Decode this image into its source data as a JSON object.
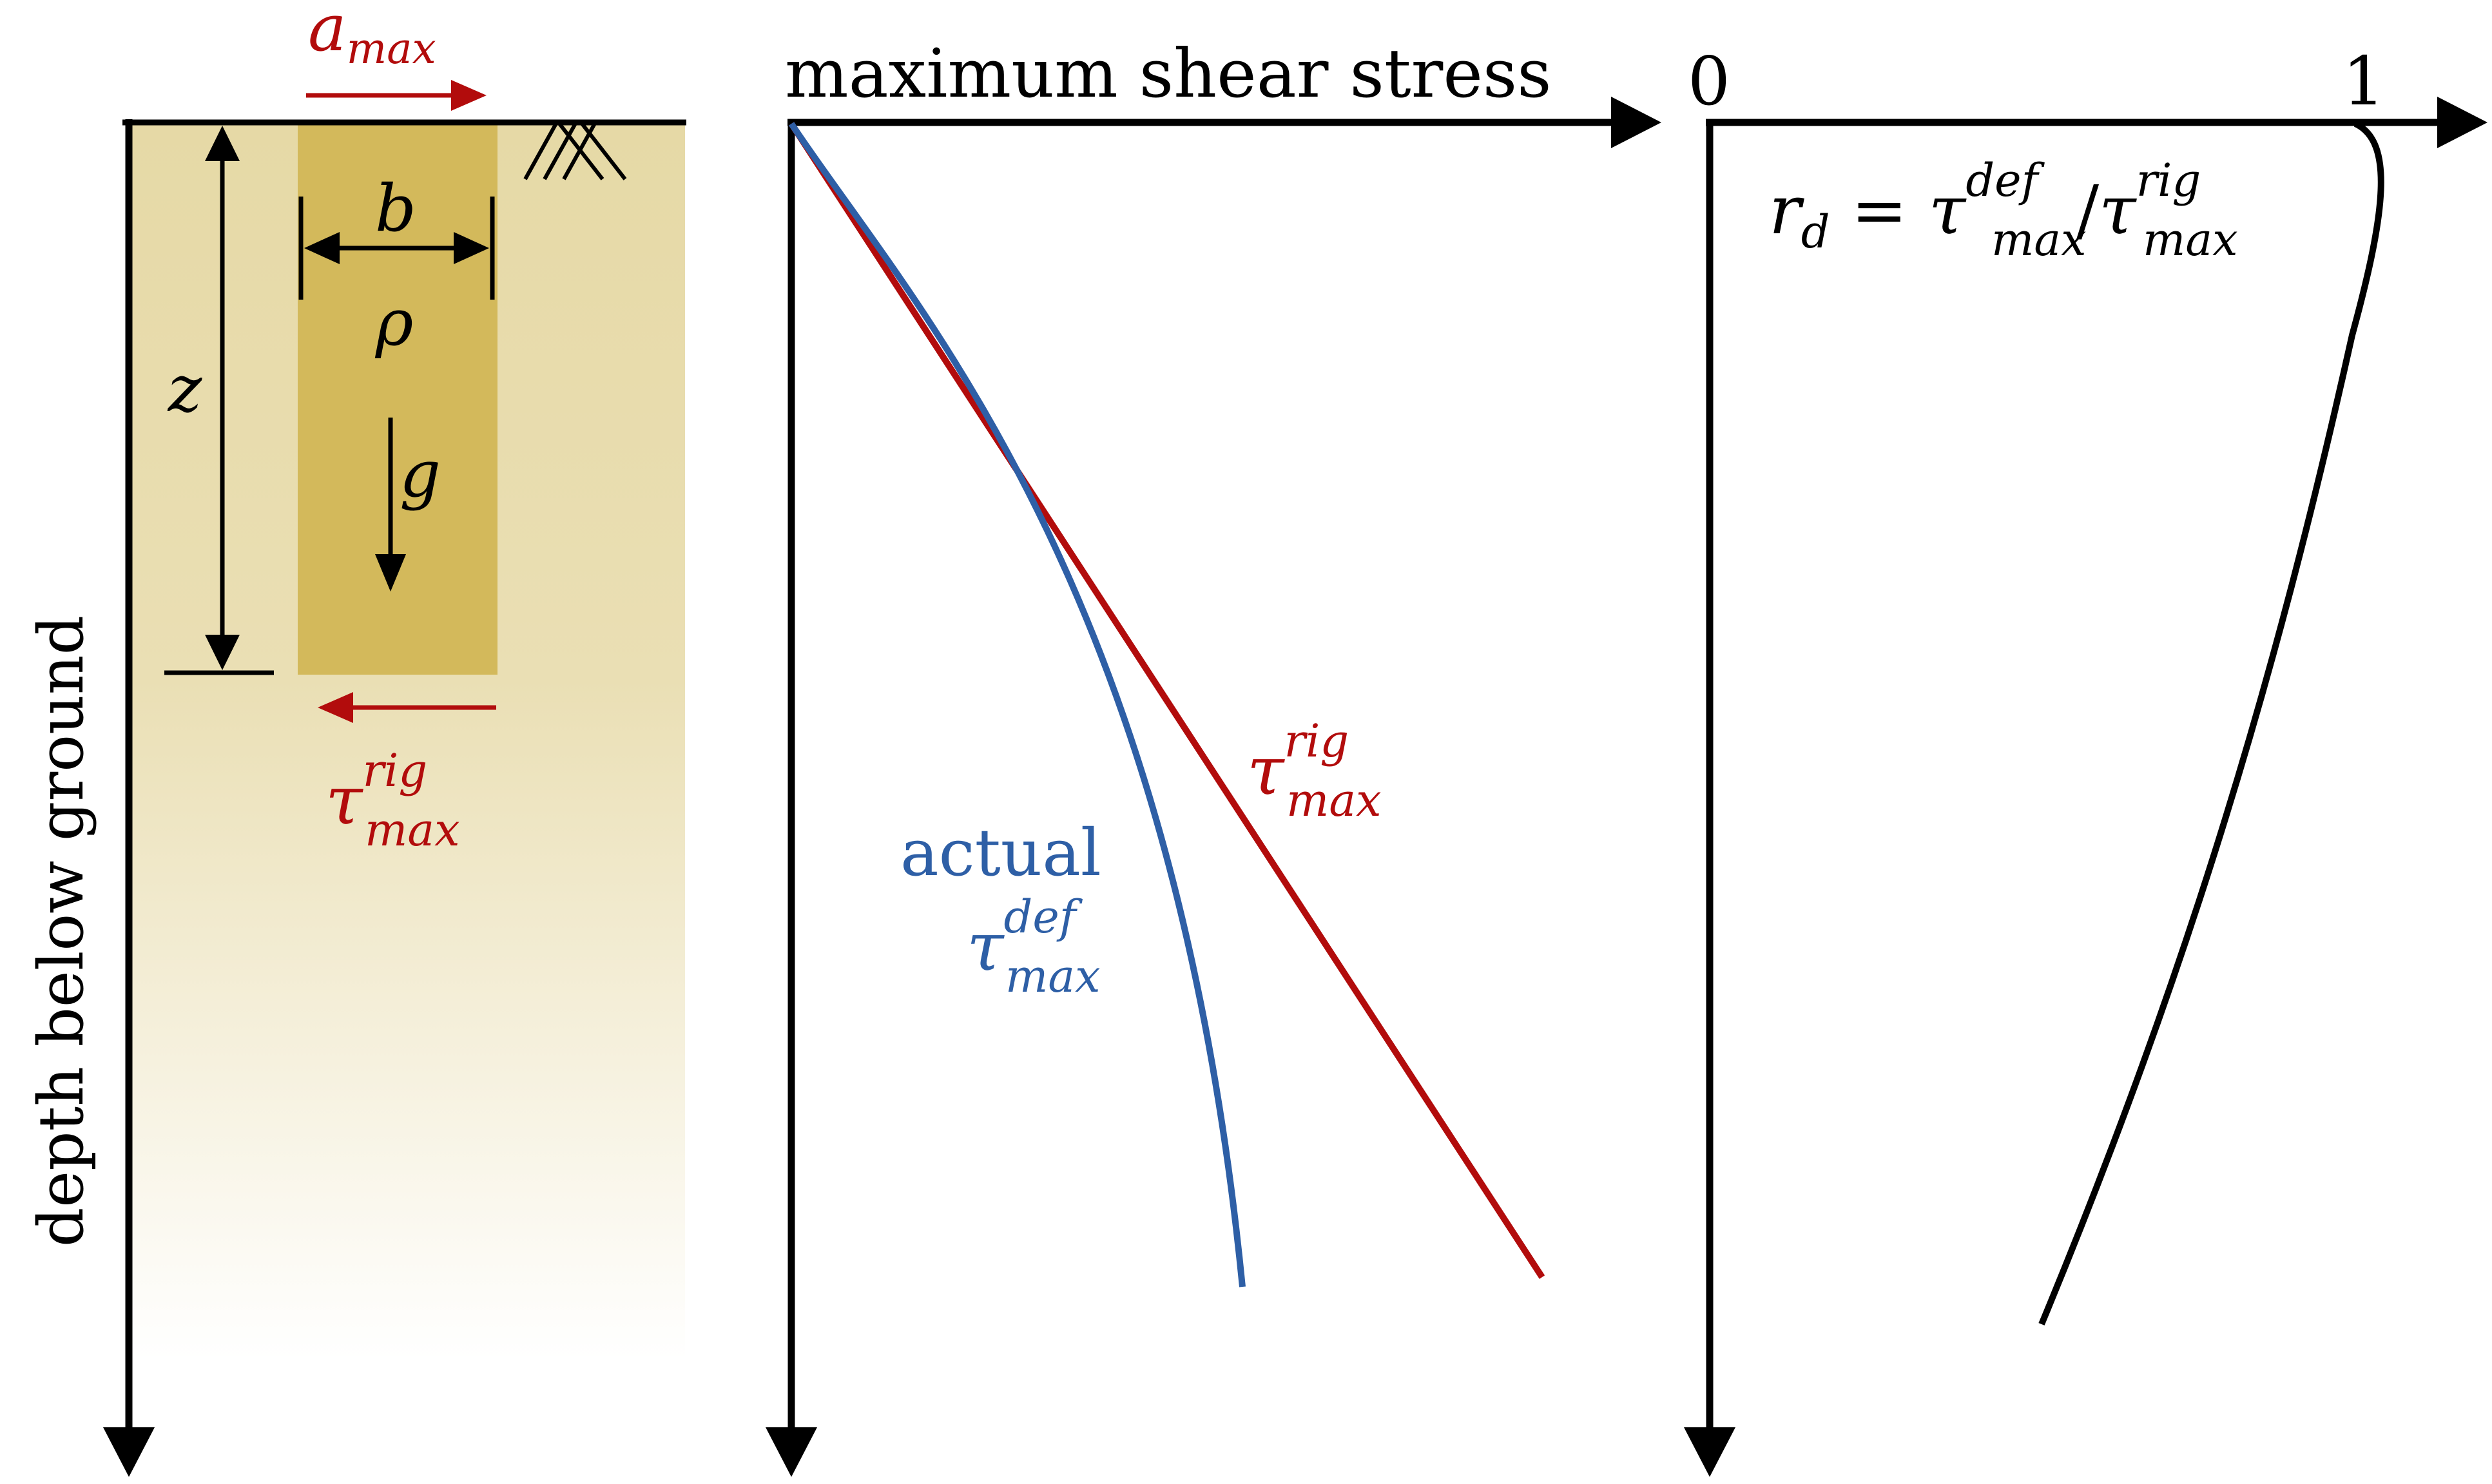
{
  "colors": {
    "soil_top": "#e6d9a6",
    "soil_bottom": "#ffffff",
    "column": "#d3b95b",
    "black": "#000000",
    "red": "#b20c0c",
    "blue": "#2e5fa6"
  },
  "panel1": {
    "ylabel": "depth below ground",
    "a": "a",
    "a_sub": "max",
    "b": "b",
    "rho": "ρ",
    "z": "z",
    "g": "g",
    "tau": "τ",
    "tau_sup": "rig",
    "tau_sub": "max"
  },
  "panel2": {
    "title": "maximum shear stress",
    "rig_tau": "τ",
    "rig_sup": "rig",
    "rig_sub": "max",
    "actual_label": "actual",
    "def_tau": "τ",
    "def_sup": "def",
    "def_sub": "max"
  },
  "panel3": {
    "tick0": "0",
    "tick1": "1",
    "r": "r",
    "r_sub": "d",
    "eq": " = ",
    "tau1": "τ",
    "tau1_sup": "def",
    "tau1_sub": "max",
    "slash": "/",
    "tau2": "τ",
    "tau2_sup": "rig",
    "tau2_sub": "max"
  }
}
